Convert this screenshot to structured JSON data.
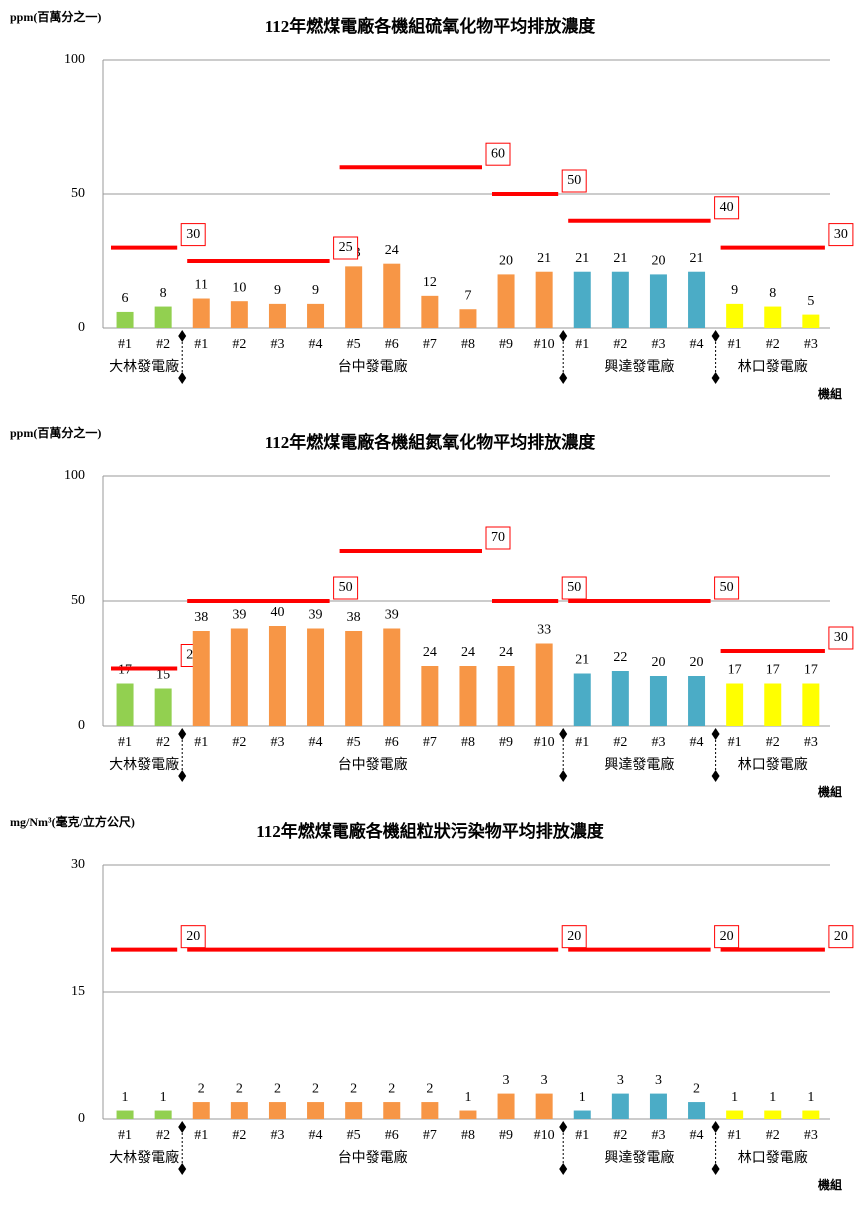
{
  "chart_data": [
    {
      "type": "bar",
      "y_label": "ppm(百萬分之一)",
      "title": "112年燃煤電廠各機組硫氧化物平均排放濃度",
      "x_label": "機組",
      "ylim": [
        0,
        100
      ],
      "yticks": [
        0,
        50,
        100
      ],
      "grid": true,
      "groups": [
        {
          "name": "大林發電廠",
          "color": "#92d050",
          "categories": [
            "#1",
            "#2"
          ],
          "values": [
            6,
            8
          ],
          "limits": [
            30,
            30
          ]
        },
        {
          "name": "台中發電廠",
          "color": "#f79646",
          "categories": [
            "#1",
            "#2",
            "#3",
            "#4",
            "#5",
            "#6",
            "#7",
            "#8",
            "#9",
            "#10"
          ],
          "values": [
            11,
            10,
            9,
            9,
            23,
            24,
            12,
            7,
            20,
            21
          ],
          "limits": [
            25,
            25,
            25,
            25,
            60,
            60,
            60,
            60,
            50,
            50
          ]
        },
        {
          "name": "興達發電廠",
          "color": "#4bacc6",
          "categories": [
            "#1",
            "#2",
            "#3",
            "#4"
          ],
          "values": [
            21,
            21,
            20,
            21
          ],
          "limits": [
            40,
            40,
            40,
            40
          ]
        },
        {
          "name": "林口發電廠",
          "color": "#ffff00",
          "categories": [
            "#1",
            "#2",
            "#3"
          ],
          "values": [
            9,
            8,
            5
          ],
          "limits": [
            30,
            30,
            30
          ]
        }
      ]
    },
    {
      "type": "bar",
      "y_label": "ppm(百萬分之一)",
      "title": "112年燃煤電廠各機組氮氧化物平均排放濃度",
      "x_label": "機組",
      "ylim": [
        0,
        100
      ],
      "yticks": [
        0,
        50,
        100
      ],
      "grid": true,
      "groups": [
        {
          "name": "大林發電廠",
          "color": "#92d050",
          "categories": [
            "#1",
            "#2"
          ],
          "values": [
            17,
            15
          ],
          "limits": [
            23,
            23
          ]
        },
        {
          "name": "台中發電廠",
          "color": "#f79646",
          "categories": [
            "#1",
            "#2",
            "#3",
            "#4",
            "#5",
            "#6",
            "#7",
            "#8",
            "#9",
            "#10"
          ],
          "values": [
            38,
            39,
            40,
            39,
            38,
            39,
            24,
            24,
            24,
            33
          ],
          "limits": [
            50,
            50,
            50,
            50,
            70,
            70,
            70,
            70,
            50,
            50
          ]
        },
        {
          "name": "興達發電廠",
          "color": "#4bacc6",
          "categories": [
            "#1",
            "#2",
            "#3",
            "#4"
          ],
          "values": [
            21,
            22,
            20,
            20
          ],
          "limits": [
            50,
            50,
            50,
            50
          ]
        },
        {
          "name": "林口發電廠",
          "color": "#ffff00",
          "categories": [
            "#1",
            "#2",
            "#3"
          ],
          "values": [
            17,
            17,
            17
          ],
          "limits": [
            30,
            30,
            30
          ]
        }
      ]
    },
    {
      "type": "bar",
      "y_label": "mg/Nm³(毫克/立方公尺)",
      "title": "112年燃煤電廠各機組粒狀污染物平均排放濃度",
      "x_label": "機組",
      "ylim": [
        0,
        30
      ],
      "yticks": [
        0,
        15,
        30
      ],
      "grid": true,
      "groups": [
        {
          "name": "大林發電廠",
          "color": "#92d050",
          "categories": [
            "#1",
            "#2"
          ],
          "values": [
            1,
            1
          ],
          "limits": [
            20,
            20
          ]
        },
        {
          "name": "台中發電廠",
          "color": "#f79646",
          "categories": [
            "#1",
            "#2",
            "#3",
            "#4",
            "#5",
            "#6",
            "#7",
            "#8",
            "#9",
            "#10"
          ],
          "values": [
            2,
            2,
            2,
            2,
            2,
            2,
            2,
            1,
            3,
            3
          ],
          "limits": [
            20,
            20,
            20,
            20,
            20,
            20,
            20,
            20,
            20,
            20
          ]
        },
        {
          "name": "興達發電廠",
          "color": "#4bacc6",
          "categories": [
            "#1",
            "#2",
            "#3",
            "#4"
          ],
          "values": [
            1,
            3,
            3,
            2
          ],
          "limits": [
            20,
            20,
            20,
            20
          ]
        },
        {
          "name": "林口發電廠",
          "color": "#ffff00",
          "categories": [
            "#1",
            "#2",
            "#3"
          ],
          "values": [
            1,
            1,
            1
          ],
          "limits": [
            20,
            20,
            20
          ]
        }
      ]
    }
  ]
}
